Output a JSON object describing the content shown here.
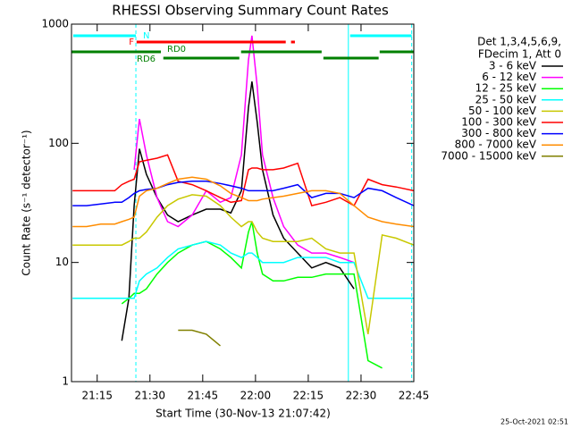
{
  "chart_data": {
    "type": "line",
    "title": "RHESSI Observing Summary Count Rates",
    "x_label": "Start Time (30-Nov-13 21:07:42)",
    "y_label": "Count Rate (s⁻¹ detector⁻¹)",
    "footnote": "25-Oct-2021 02:51",
    "legend_header": [
      "Det 1,3,4,5,6,9,",
      "FDecim 1, Att 0"
    ],
    "log_y": true,
    "xlim": [
      1267.7,
      1365
    ],
    "xticks": [
      {
        "value": 1275,
        "label": "21:15"
      },
      {
        "value": 1290,
        "label": "21:30"
      },
      {
        "value": 1305,
        "label": "21:45"
      },
      {
        "value": 1320,
        "label": "22:00"
      },
      {
        "value": 1335,
        "label": "22:15"
      },
      {
        "value": 1350,
        "label": "22:30"
      },
      {
        "value": 1365,
        "label": "22:45"
      }
    ],
    "ylim": [
      1,
      1000
    ],
    "yticks": [
      1,
      10,
      100,
      1000
    ],
    "x": [
      1268,
      1272,
      1276,
      1280,
      1282,
      1284,
      1285.5,
      1287,
      1289,
      1292,
      1295,
      1298,
      1302,
      1306,
      1310,
      1313,
      1316,
      1318,
      1319,
      1320.5,
      1322,
      1325,
      1328,
      1332,
      1336,
      1340,
      1344,
      1348,
      1352,
      1356,
      1360,
      1365
    ],
    "series": [
      {
        "name": "3 - 6 keV",
        "color": "#000000",
        "values": [
          null,
          null,
          null,
          null,
          2.2,
          5,
          30,
          90,
          55,
          35,
          25,
          22,
          25,
          28,
          28,
          26,
          40,
          200,
          330,
          150,
          60,
          25,
          16,
          12,
          9,
          10,
          9,
          6,
          null,
          null,
          null,
          null
        ]
      },
      {
        "name": "6 - 12 keV",
        "color": "#ff00ff",
        "values": [
          null,
          null,
          null,
          null,
          null,
          null,
          60,
          160,
          80,
          35,
          22,
          20,
          25,
          40,
          32,
          35,
          80,
          500,
          800,
          300,
          80,
          35,
          20,
          14,
          12,
          12,
          11,
          10,
          null,
          null,
          null,
          null
        ]
      },
      {
        "name": "12 - 25 keV",
        "color": "#00ff00",
        "values": [
          null,
          null,
          null,
          null,
          4.5,
          5,
          5.5,
          5.5,
          6,
          8,
          10,
          12,
          14,
          15,
          13,
          11,
          9,
          18,
          22,
          12,
          8,
          7,
          7,
          7.5,
          7.5,
          8,
          8,
          8,
          1.5,
          1.3,
          null,
          null
        ]
      },
      {
        "name": "25 - 50 keV",
        "color": "#00ffff",
        "values": [
          5,
          5,
          5,
          5,
          5,
          5,
          5,
          7,
          8,
          9,
          11,
          13,
          14,
          15,
          14,
          12,
          11,
          12,
          12,
          11,
          10,
          10,
          10,
          11,
          11,
          11,
          10,
          10,
          5,
          5,
          5,
          5
        ]
      },
      {
        "name": "50 - 100 keV",
        "color": "#c8c800",
        "values": [
          14,
          14,
          14,
          14,
          14,
          15,
          16,
          16,
          18,
          24,
          30,
          34,
          37,
          36,
          30,
          24,
          20,
          22,
          22,
          18,
          16,
          15,
          15,
          15,
          16,
          13,
          12,
          12,
          2.5,
          17,
          16,
          14
        ]
      },
      {
        "name": "100 - 300 keV",
        "color": "#ff0000",
        "values": [
          40,
          40,
          40,
          40,
          45,
          48,
          50,
          70,
          72,
          75,
          80,
          48,
          45,
          40,
          35,
          32,
          33,
          60,
          62,
          62,
          60,
          60,
          62,
          68,
          30,
          32,
          35,
          30,
          50,
          45,
          43,
          40
        ]
      },
      {
        "name": "300 - 800 keV",
        "color": "#0000ff",
        "values": [
          30,
          30,
          31,
          32,
          32,
          35,
          38,
          40,
          41,
          42,
          45,
          47,
          48,
          48,
          46,
          44,
          42,
          40,
          40,
          40,
          40,
          40,
          42,
          45,
          35,
          38,
          38,
          35,
          42,
          40,
          35,
          30
        ]
      },
      {
        "name": "800 - 7000 keV",
        "color": "#ff8c00",
        "values": [
          20,
          20,
          21,
          21,
          22,
          23,
          24,
          36,
          40,
          42,
          46,
          50,
          52,
          50,
          44,
          38,
          35,
          33,
          33,
          33,
          34,
          35,
          36,
          38,
          40,
          40,
          38,
          30,
          24,
          22,
          21,
          20
        ]
      },
      {
        "name": "7000 - 15000 keV",
        "color": "#808000",
        "values": [
          null,
          null,
          null,
          null,
          null,
          null,
          null,
          null,
          null,
          null,
          null,
          2.7,
          2.7,
          2.5,
          2,
          null,
          null,
          null,
          null,
          null,
          null,
          null,
          null,
          null,
          null,
          null,
          null,
          null,
          null,
          null,
          null,
          null
        ]
      }
    ],
    "flags": [
      {
        "label": "N",
        "color": "#00ffff",
        "segments": [
          [
            1268.2,
            1286.0
          ],
          [
            1346.9,
            1364.4
          ]
        ]
      },
      {
        "label": "F",
        "color": "#ff0000",
        "segments": [
          [
            1286.2,
            1328.6
          ],
          [
            1330.1,
            1331.2
          ]
        ]
      },
      {
        "label": "RD0",
        "color": "#008000",
        "segments": [
          [
            1267.7,
            1293.1
          ],
          [
            1315.9,
            1338.8
          ],
          [
            1355.3,
            1365
          ]
        ]
      },
      {
        "label": "RD6",
        "color": "#008000",
        "segments": [
          [
            1293.8,
            1315.4
          ],
          [
            1339.3,
            1355.0
          ]
        ]
      }
    ],
    "vlines": [
      {
        "x": 1286.0,
        "style": "dashed",
        "color": "#00ffff"
      },
      {
        "x": 1346.4,
        "style": "solid",
        "color": "#00ffff"
      },
      {
        "x": 1364.4,
        "style": "dashed",
        "color": "#00ffff"
      }
    ]
  }
}
